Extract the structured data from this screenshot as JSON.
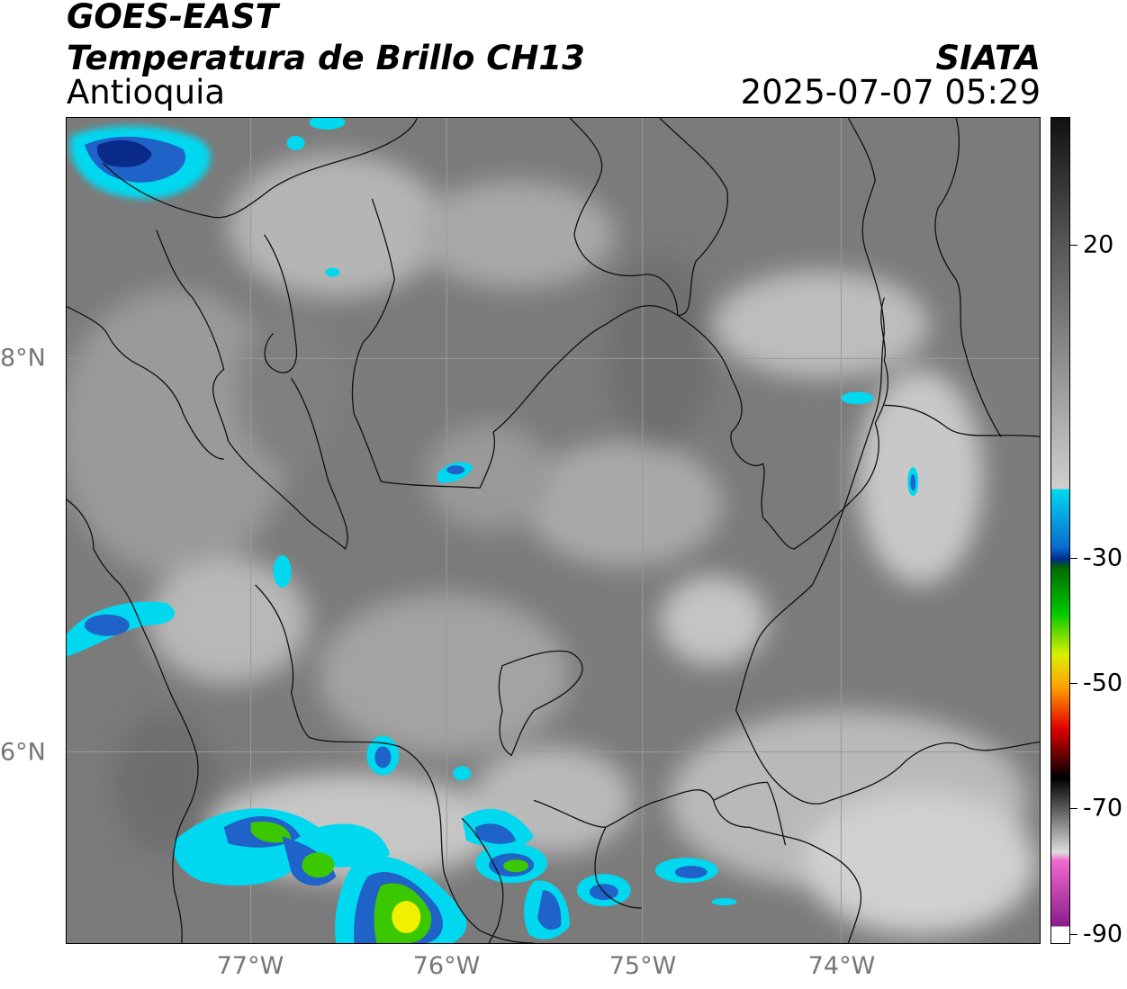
{
  "header": {
    "title_line1": "GOES-EAST",
    "title_line2": "Temperatura de Brillo CH13",
    "region": "Antioquia",
    "brand": "SIATA",
    "datetime": "2025-07-07 05:29"
  },
  "map": {
    "lon_ticks": [
      {
        "label": "77°W",
        "value": -77
      },
      {
        "label": "76°W",
        "value": -76
      },
      {
        "label": "75°W",
        "value": -75
      },
      {
        "label": "74°W",
        "value": -74
      }
    ],
    "lat_ticks": [
      {
        "label": "8°N",
        "value": 8
      },
      {
        "label": "6°N",
        "value": 6
      }
    ],
    "lon_range": [
      -77.95,
      -72.98
    ],
    "lat_range": [
      5.05,
      9.25
    ],
    "gridlines": true
  },
  "colorbar": {
    "range": [
      -90,
      30
    ],
    "ticks": [
      {
        "label": "20",
        "value": 20
      },
      {
        "label": "-30",
        "value": -30
      },
      {
        "label": "-50",
        "value": -50
      },
      {
        "label": "-70",
        "value": -70
      },
      {
        "label": "-90",
        "value": -90
      }
    ],
    "colors": {
      "warm_dark": "#111111",
      "mid_gray": "#777777",
      "cold_white": "#ffffff",
      "cyan": "#00d8f0",
      "navy": "#002a8a",
      "green": "#00c800",
      "yellow": "#f0f000",
      "red": "#e00000",
      "black": "#000000",
      "pink": "#f06ad0",
      "magenta": "#8a1a8a"
    }
  }
}
